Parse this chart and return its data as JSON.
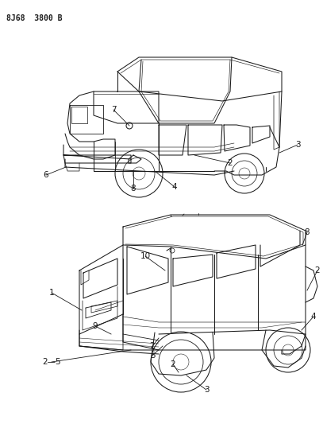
{
  "title": "8J68  3800 B",
  "title_fontsize": 7,
  "bg_color": "#ffffff",
  "line_color": "#1a1a1a",
  "label_fontsize": 7.5,
  "fig_w": 4.07,
  "fig_h": 5.33,
  "dpi": 100
}
